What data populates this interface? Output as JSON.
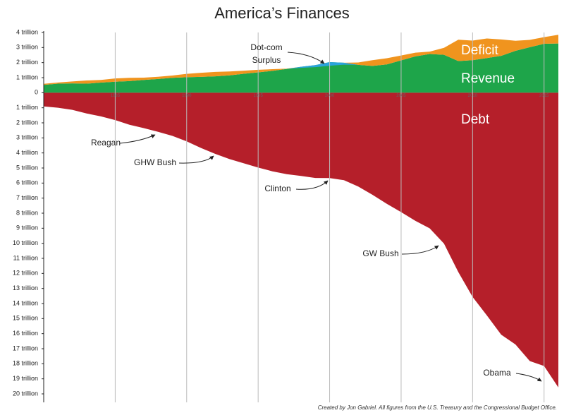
{
  "chart_data": {
    "type": "area",
    "title": "America’s Finances",
    "source": "Created by Jon Gabriel. All figures from the U.S. Treasury and the Congressional Budget Office.",
    "x": [
      1980,
      1981,
      1982,
      1983,
      1984,
      1985,
      1986,
      1987,
      1988,
      1989,
      1990,
      1991,
      1992,
      1993,
      1994,
      1995,
      1996,
      1997,
      1998,
      1999,
      2000,
      2001,
      2002,
      2003,
      2004,
      2005,
      2006,
      2007,
      2008,
      2009,
      2010,
      2011,
      2012,
      2013,
      2014,
      2015,
      2016
    ],
    "series": [
      {
        "name": "Revenue",
        "color": "#1ea54a",
        "stack": "base",
        "values": [
          0.52,
          0.6,
          0.62,
          0.6,
          0.67,
          0.73,
          0.77,
          0.85,
          0.91,
          0.99,
          1.03,
          1.05,
          1.09,
          1.15,
          1.26,
          1.35,
          1.45,
          1.58,
          1.72,
          1.83,
          2.03,
          1.99,
          1.85,
          1.78,
          1.88,
          2.15,
          2.41,
          2.57,
          2.52,
          2.1,
          2.16,
          2.3,
          2.45,
          2.78,
          3.02,
          3.25,
          3.27
        ]
      },
      {
        "name": "Deficit",
        "color": "#f0941e",
        "stack": "above",
        "values": [
          0.07,
          0.08,
          0.13,
          0.21,
          0.18,
          0.22,
          0.22,
          0.15,
          0.15,
          0.15,
          0.22,
          0.27,
          0.29,
          0.26,
          0.2,
          0.17,
          0.11,
          0.02,
          0,
          0,
          0,
          0,
          0.16,
          0.38,
          0.41,
          0.32,
          0.25,
          0.16,
          0.46,
          1.42,
          1.3,
          1.3,
          1.09,
          0.67,
          0.49,
          0.44,
          0.58
        ]
      },
      {
        "color": "#2aa3dc",
        "stack": "below",
        "values": [
          0,
          0,
          0,
          0,
          0,
          0,
          0,
          0,
          0,
          0,
          0,
          0,
          0,
          0,
          0,
          0,
          0,
          0,
          0.07,
          0.13,
          0.24,
          0.13,
          0,
          0,
          0,
          0,
          0,
          0,
          0,
          0,
          0,
          0,
          0,
          0,
          0,
          0,
          0
        ]
      },
      {
        "name": "Debt",
        "color": "#b51f2a",
        "stack": "base",
        "values": [
          -0.91,
          -1.0,
          -1.14,
          -1.38,
          -1.57,
          -1.82,
          -2.13,
          -2.35,
          -2.6,
          -2.87,
          -3.23,
          -3.67,
          -4.06,
          -4.41,
          -4.69,
          -4.97,
          -5.22,
          -5.41,
          -5.53,
          -5.66,
          -5.67,
          -5.81,
          -6.23,
          -6.78,
          -7.38,
          -7.93,
          -8.51,
          -9.01,
          -10.02,
          -11.91,
          -13.56,
          -14.79,
          -16.07,
          -16.72,
          -17.82,
          -18.15,
          -19.57
        ]
      }
    ],
    "annotations": [
      "Dot-com",
      "Surplus",
      "Reagan",
      "GHW Bush",
      "Clinton",
      "GW Bush",
      "Obama"
    ],
    "xlim": [
      1980,
      2016
    ],
    "xticks": [
      1985,
      1990,
      1995,
      2000,
      2005,
      2010,
      2015
    ],
    "ylim": [
      -20,
      4
    ],
    "yticks": [
      {
        "value": 4,
        "label": "4 trillion"
      },
      {
        "value": 3,
        "label": "3 trillion"
      },
      {
        "value": 2,
        "label": "2 trillion"
      },
      {
        "value": 1,
        "label": "1 trillion"
      },
      0,
      {
        "value": -1,
        "label": "1 trillion"
      },
      {
        "value": -2,
        "label": "2 trillion"
      },
      {
        "value": -3,
        "label": "3 trillion"
      },
      {
        "value": -4,
        "label": "4 trillion"
      },
      {
        "value": -5,
        "label": "5 trillion"
      },
      {
        "value": -6,
        "label": "6 trillion"
      },
      {
        "value": -7,
        "label": "7 trillion"
      },
      {
        "value": -8,
        "label": "8 trillion"
      },
      {
        "value": -9,
        "label": "9 trillion"
      },
      {
        "value": -10,
        "label": "10 trillion"
      },
      {
        "value": -11,
        "label": "11 trillion"
      },
      {
        "value": -12,
        "label": "12 trillion"
      },
      {
        "value": -13,
        "label": "13 trillion"
      },
      {
        "value": -14,
        "label": "14 trillion"
      },
      {
        "value": -15,
        "label": "15 trillion"
      },
      {
        "value": -16,
        "label": "16 trillion"
      },
      {
        "value": -17,
        "label": "17 trillion"
      },
      {
        "value": -18,
        "label": "18 trillion"
      },
      {
        "value": -19,
        "label": "19 trillion"
      },
      {
        "value": -20,
        "label": "20 trillion"
      }
    ],
    "grid": true
  }
}
